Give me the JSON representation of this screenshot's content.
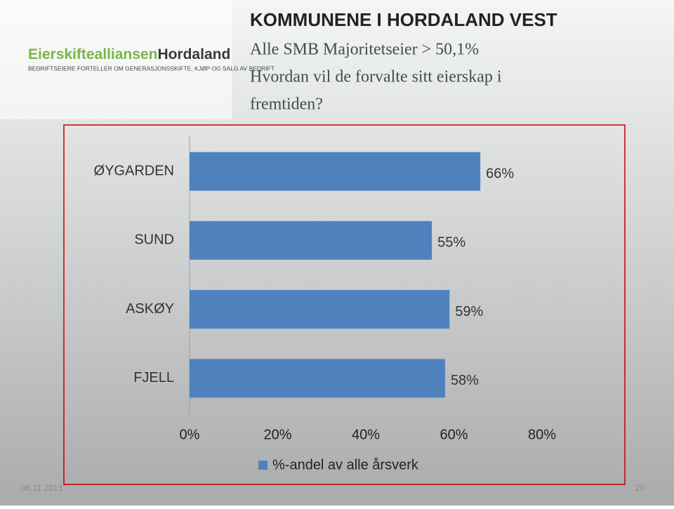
{
  "logo": {
    "name": "Eierskiftealliansen",
    "region": "Hordaland",
    "tagline": "BEDRIFTSEIERE FORTELLER OM GENERASJONSSKIFTE, KJØP OG SALG AV BEDRIFT"
  },
  "header": {
    "title": "KOMMUNENE I HORDALAND VEST",
    "lines": [
      "Alle SMB Majoritetseier  > 50,1%",
      "Hvordan vil de forvalte sitt eierskap i",
      "fremtiden?"
    ]
  },
  "footer": {
    "date": "06.11.2013",
    "page": "20"
  },
  "chart_data": {
    "type": "hbar",
    "categories": [
      "ØYGARDEN",
      "SUND",
      "ASKØY",
      "FJELL"
    ],
    "series": [
      {
        "name": "%-andel av alle årsverk",
        "color": "#4f81bd",
        "values": [
          66,
          55,
          59,
          58
        ],
        "value_labels": [
          "66%",
          "55%",
          "59%",
          "58%"
        ]
      }
    ],
    "xlim": [
      0,
      80
    ],
    "xticks": [
      {
        "value": 0,
        "label": "0%"
      },
      {
        "value": 20,
        "label": "20%"
      },
      {
        "value": 40,
        "label": "40%"
      },
      {
        "value": 60,
        "label": "60%"
      },
      {
        "value": 80,
        "label": "80%"
      }
    ],
    "grid": false,
    "legend": "bottom"
  }
}
